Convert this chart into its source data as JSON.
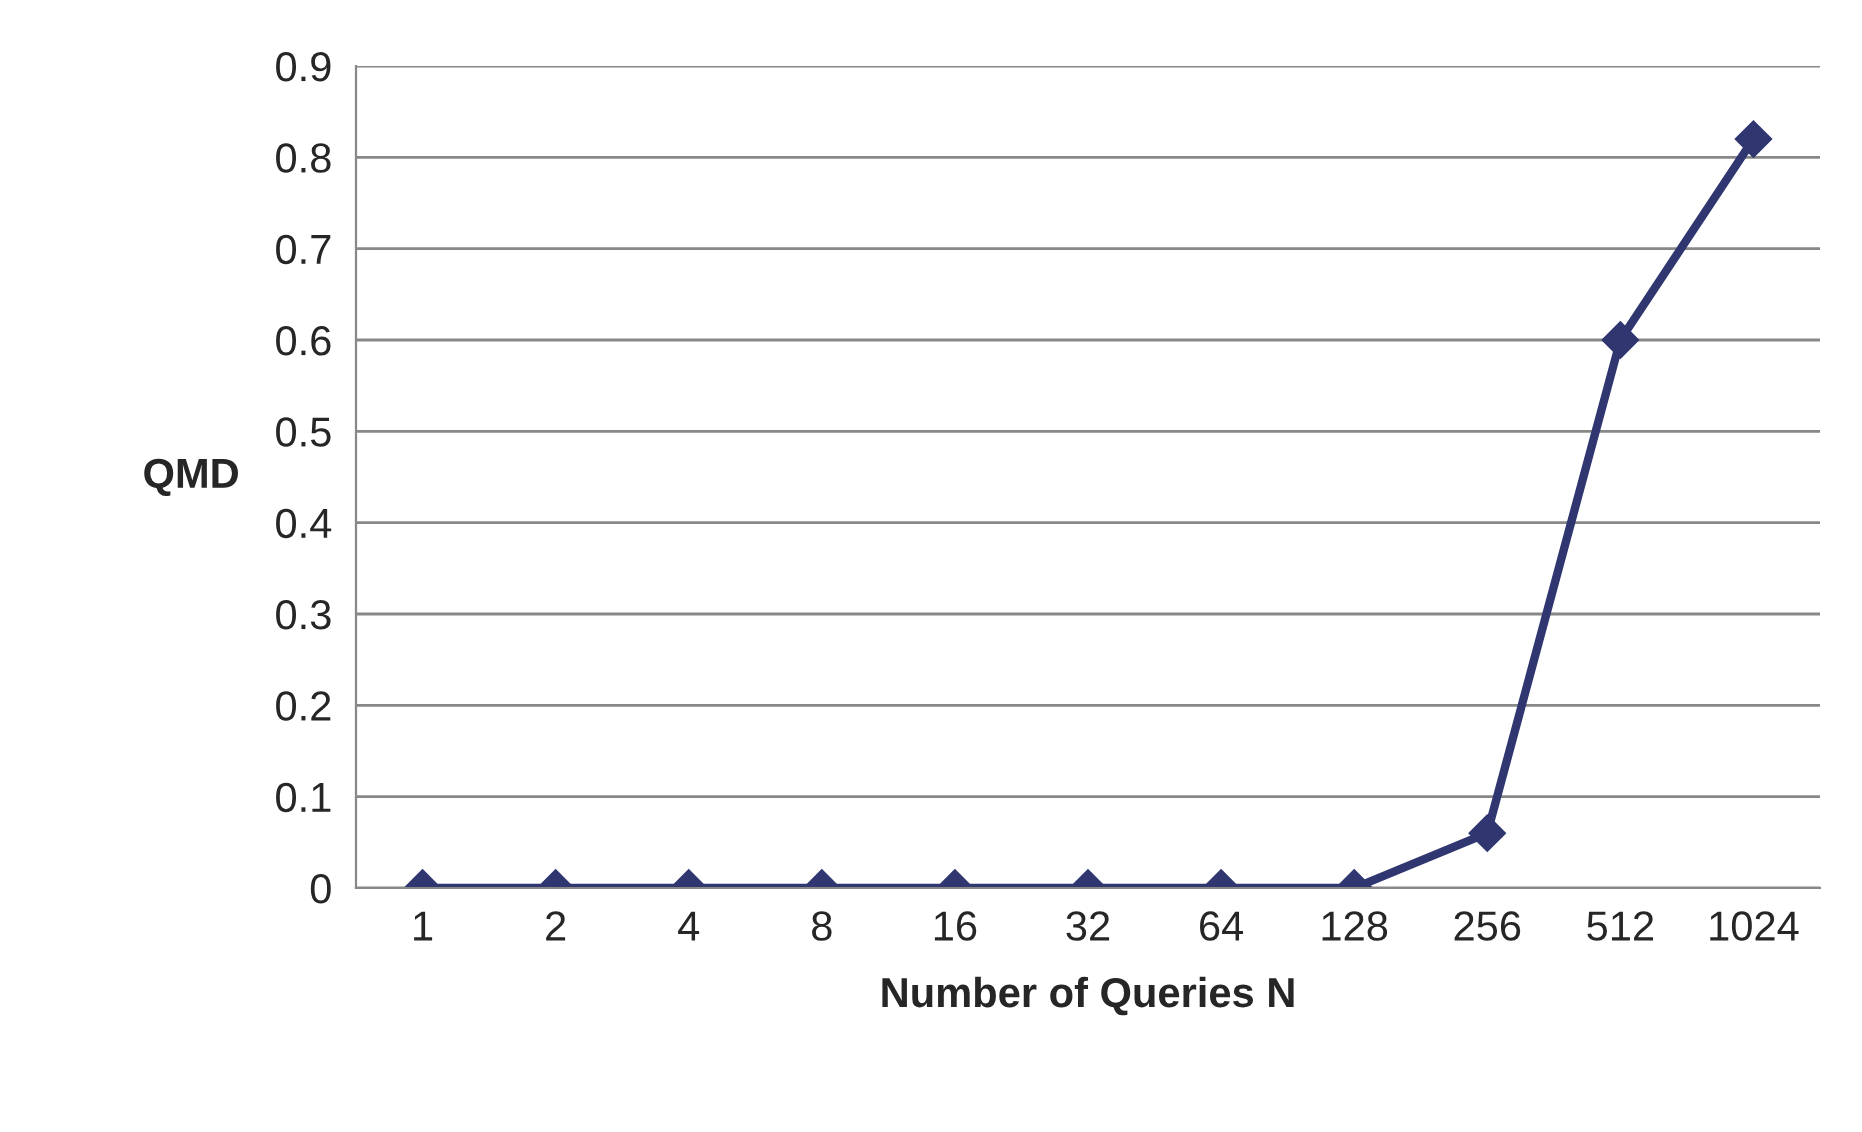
{
  "chart_data": {
    "type": "line",
    "xlabel": "Number of Queries N",
    "ylabel": "QMD",
    "categories": [
      "1",
      "2",
      "4",
      "8",
      "16",
      "32",
      "64",
      "128",
      "256",
      "512",
      "1024"
    ],
    "series": [
      {
        "color": "#2f3670",
        "values": [
          0,
          0,
          0,
          0,
          0,
          0,
          0,
          0,
          0.06,
          0.6,
          0.82
        ]
      }
    ],
    "ylim": [
      0,
      0.9
    ],
    "yticks": [
      0,
      0.1,
      0.2,
      0.3,
      0.4,
      0.5,
      0.6,
      0.7,
      0.8,
      0.9
    ],
    "grid": "y",
    "marker": "diamond",
    "line_style": "solid"
  }
}
